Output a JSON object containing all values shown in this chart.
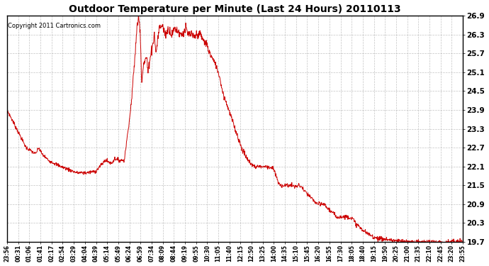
{
  "title": "Outdoor Temperature per Minute (Last 24 Hours) 20110113",
  "copyright_text": "Copyright 2011 Cartronics.com",
  "line_color": "#cc0000",
  "background_color": "#ffffff",
  "grid_color": "#aaaaaa",
  "ylim": [
    19.7,
    26.9
  ],
  "yticks": [
    19.7,
    20.3,
    20.9,
    21.5,
    22.1,
    22.7,
    23.3,
    23.9,
    24.5,
    25.1,
    25.7,
    26.3,
    26.9
  ],
  "xtick_labels": [
    "23:56",
    "00:31",
    "01:06",
    "01:41",
    "02:17",
    "02:54",
    "03:29",
    "04:04",
    "04:39",
    "05:14",
    "05:49",
    "06:24",
    "06:59",
    "07:34",
    "08:09",
    "08:44",
    "09:19",
    "09:55",
    "10:30",
    "11:05",
    "11:40",
    "12:15",
    "12:50",
    "13:25",
    "14:00",
    "14:35",
    "15:10",
    "15:45",
    "16:20",
    "16:55",
    "17:30",
    "18:05",
    "18:40",
    "19:15",
    "19:50",
    "20:25",
    "21:00",
    "21:35",
    "22:10",
    "22:45",
    "23:20",
    "23:55"
  ],
  "key_points": [
    [
      0,
      23.9
    ],
    [
      30,
      23.3
    ],
    [
      60,
      22.7
    ],
    [
      90,
      22.5
    ],
    [
      100,
      22.7
    ],
    [
      110,
      22.5
    ],
    [
      130,
      22.3
    ],
    [
      170,
      22.1
    ],
    [
      220,
      21.9
    ],
    [
      250,
      21.9
    ],
    [
      280,
      21.95
    ],
    [
      310,
      22.3
    ],
    [
      330,
      22.2
    ],
    [
      340,
      22.35
    ],
    [
      355,
      22.3
    ],
    [
      370,
      22.3
    ],
    [
      390,
      23.9
    ],
    [
      400,
      25.1
    ],
    [
      410,
      26.5
    ],
    [
      415,
      26.9
    ],
    [
      420,
      26.5
    ],
    [
      425,
      24.8
    ],
    [
      430,
      25.3
    ],
    [
      440,
      25.6
    ],
    [
      445,
      25.1
    ],
    [
      450,
      25.5
    ],
    [
      460,
      26.0
    ],
    [
      465,
      26.3
    ],
    [
      470,
      25.7
    ],
    [
      475,
      26.1
    ],
    [
      480,
      26.5
    ],
    [
      490,
      26.6
    ],
    [
      500,
      26.3
    ],
    [
      510,
      26.5
    ],
    [
      520,
      26.3
    ],
    [
      530,
      26.5
    ],
    [
      540,
      26.4
    ],
    [
      550,
      26.3
    ],
    [
      560,
      26.4
    ],
    [
      565,
      26.5
    ],
    [
      570,
      26.3
    ],
    [
      580,
      26.3
    ],
    [
      590,
      26.2
    ],
    [
      600,
      26.3
    ],
    [
      610,
      26.3
    ],
    [
      620,
      26.1
    ],
    [
      630,
      26.0
    ],
    [
      640,
      25.7
    ],
    [
      650,
      25.5
    ],
    [
      660,
      25.3
    ],
    [
      670,
      25.0
    ],
    [
      680,
      24.5
    ],
    [
      700,
      23.9
    ],
    [
      720,
      23.3
    ],
    [
      740,
      22.7
    ],
    [
      760,
      22.3
    ],
    [
      780,
      22.1
    ],
    [
      800,
      22.1
    ],
    [
      820,
      22.1
    ],
    [
      840,
      22.05
    ],
    [
      860,
      21.5
    ],
    [
      880,
      21.5
    ],
    [
      900,
      21.5
    ],
    [
      910,
      21.45
    ],
    [
      920,
      21.5
    ],
    [
      930,
      21.45
    ],
    [
      940,
      21.3
    ],
    [
      960,
      21.1
    ],
    [
      980,
      20.9
    ],
    [
      1000,
      20.9
    ],
    [
      1020,
      20.7
    ],
    [
      1040,
      20.5
    ],
    [
      1060,
      20.5
    ],
    [
      1080,
      20.5
    ],
    [
      1090,
      20.45
    ],
    [
      1100,
      20.3
    ],
    [
      1120,
      20.1
    ],
    [
      1140,
      19.95
    ],
    [
      1160,
      19.85
    ],
    [
      1180,
      19.8
    ],
    [
      1200,
      19.78
    ],
    [
      1210,
      19.76
    ],
    [
      1220,
      19.75
    ],
    [
      1230,
      19.73
    ],
    [
      1240,
      19.72
    ],
    [
      1260,
      19.71
    ],
    [
      1280,
      19.7
    ],
    [
      1300,
      19.7
    ],
    [
      1320,
      19.7
    ],
    [
      1340,
      19.7
    ],
    [
      1360,
      19.7
    ],
    [
      1380,
      19.7
    ],
    [
      1400,
      19.7
    ],
    [
      1420,
      19.7
    ],
    [
      1439,
      19.7
    ]
  ]
}
